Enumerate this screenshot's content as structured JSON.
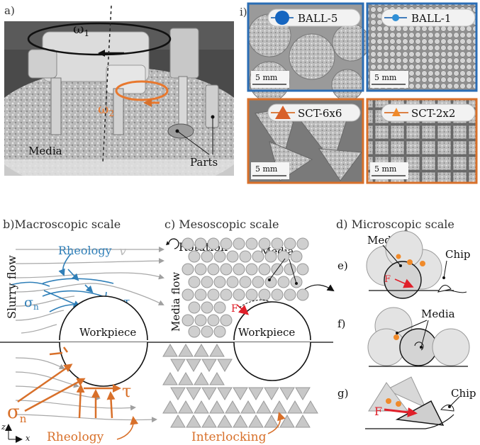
{
  "panel_a": {
    "label": "a)",
    "omega1": "ω",
    "omega1_sub": "1",
    "omega2": "ω",
    "omega2_sub": "2",
    "media": "Media",
    "parts": "Parts"
  },
  "panel_i": {
    "label": "i)",
    "tiles": [
      {
        "label": "BALL-5",
        "scale": "5 mm",
        "border": "#2a6db5",
        "marker": "circle-large"
      },
      {
        "label": "BALL-1",
        "scale": "5 mm",
        "border": "#2a6db5",
        "marker": "circle-small"
      },
      {
        "label": "SCT-6x6",
        "scale": "5 mm",
        "border": "#d8702a",
        "marker": "triangle-large"
      },
      {
        "label": "SCT-2x2",
        "scale": "5 mm",
        "border": "#d8702a",
        "marker": "triangle-small"
      }
    ]
  },
  "panel_b": {
    "title": "b)Macroscopic scale",
    "rheology_top": "Rheology",
    "v": "v",
    "slurry_flow": "Slurry flow",
    "sigma": "σ",
    "sigma_sub": "n",
    "tau": "τ",
    "workpiece": "Workpiece",
    "rheology_bottom": "Rheology",
    "axis_z": "z",
    "axis_x": "x"
  },
  "panel_c": {
    "title": "c)  Mesoscopic scale",
    "rotation": "Rotation",
    "media": "Media",
    "media_flow": "Media flow",
    "force": "F",
    "workpiece": "Workpiece",
    "interlocking": "Interlocking"
  },
  "panel_d": {
    "title": "d) Microscopic scale",
    "media_e": "Media",
    "chip_e": "Chip",
    "label_e": "e)",
    "force_e": "F",
    "label_f": "f)",
    "media_f": "Media",
    "label_g": "g)",
    "chip_g": "Chip",
    "force_g": "F"
  },
  "colors": {
    "blue": "#2f7fb8",
    "orange": "#d8702a",
    "red": "#e0202a",
    "grey_particle": "#cfcfcf",
    "flow_line": "#a8a8a8"
  }
}
